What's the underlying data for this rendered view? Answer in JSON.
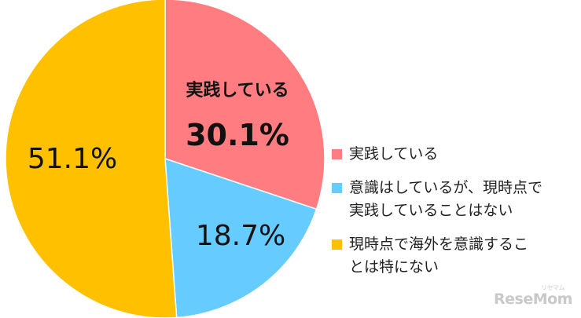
{
  "chart_data": {
    "type": "pie",
    "title": "",
    "start": "top",
    "direction": "clockwise",
    "slices": [
      {
        "label": "実践している",
        "value": 30.1,
        "value_text": "30.1%",
        "color": "#FF7C80",
        "inline_label": "実践している"
      },
      {
        "label": "意識はしているが、現時点で実践していることはない",
        "label_lines": [
          "意識はしているが、現時点で",
          "実践していることはない"
        ],
        "value": 18.7,
        "value_text": "18.7%",
        "color": "#66CCFF"
      },
      {
        "label": "現時点で海外を意識することは特にない",
        "label_lines": [
          "現時点で海外を意識するこ",
          "とは特にない"
        ],
        "value": 51.1,
        "value_text": "51.1%",
        "color": "#FFC000"
      }
    ],
    "legend_position": "right"
  },
  "watermark": {
    "text": "ReseMom",
    "sub": "リセマム"
  }
}
